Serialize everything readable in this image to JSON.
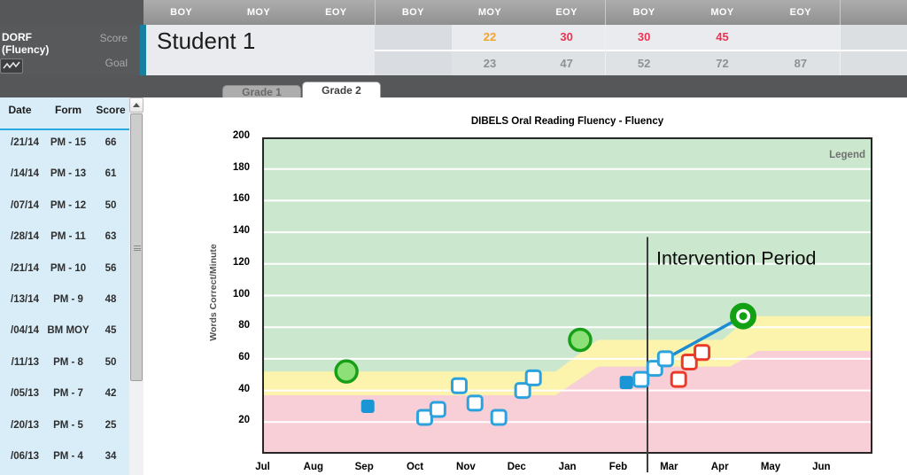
{
  "panel": {
    "measure_line1": "DORF",
    "measure_line2": "(Fluency)",
    "score_label": "Score",
    "goal_label": "Goal"
  },
  "header": {
    "student_name": "Student 1",
    "periods": [
      "BOY",
      "MOY",
      "EOY",
      "BOY",
      "MOY",
      "EOY",
      "BOY",
      "MOY",
      "EOY"
    ],
    "scores": [
      "",
      "22",
      "30",
      "30",
      "45",
      ""
    ],
    "score_colors": [
      "",
      "orange",
      "red",
      "red",
      "red",
      ""
    ],
    "goals": [
      "",
      "23",
      "47",
      "52",
      "72",
      "87"
    ],
    "score_color_hex": {
      "orange": "#f0a42c",
      "red": "#ee3352",
      "goal_gray": "#8d9196"
    }
  },
  "tabs": [
    {
      "label": "Grade 1",
      "active": false
    },
    {
      "label": "Grade 2",
      "active": true
    }
  ],
  "table": {
    "columns": [
      "Date",
      "Form",
      "Score"
    ],
    "rows": [
      {
        "date": "/21/14",
        "form": "PM - 15",
        "score": "66"
      },
      {
        "date": "/14/14",
        "form": "PM - 13",
        "score": "61"
      },
      {
        "date": "/07/14",
        "form": "PM - 12",
        "score": "50"
      },
      {
        "date": "/28/14",
        "form": "PM - 11",
        "score": "63"
      },
      {
        "date": "/21/14",
        "form": "PM - 10",
        "score": "56"
      },
      {
        "date": "/13/14",
        "form": "PM - 9",
        "score": "48"
      },
      {
        "date": "/04/14",
        "form": "BM MOY",
        "score": "45"
      },
      {
        "date": "/11/13",
        "form": "PM - 8",
        "score": "50"
      },
      {
        "date": "/05/13",
        "form": "PM - 7",
        "score": "42"
      },
      {
        "date": "/20/13",
        "form": "PM - 5",
        "score": "25"
      },
      {
        "date": "/06/13",
        "form": "PM - 4",
        "score": "34"
      }
    ]
  },
  "chart_data": {
    "type": "scatter",
    "title": "DIBELS Oral Reading Fluency - Fluency",
    "ylabel": "Words Correct/Minute",
    "legend_label": "Legend",
    "ylim": [
      0,
      200
    ],
    "yticks": [
      200,
      180,
      160,
      140,
      120,
      100,
      80,
      60,
      40,
      20
    ],
    "x_months": [
      "Jul",
      "Aug",
      "Sep",
      "Oct",
      "Nov",
      "Dec",
      "Jan",
      "Feb",
      "Mar",
      "Apr",
      "May",
      "Jun"
    ],
    "grid": true,
    "bands": {
      "colors": {
        "above_benchmark": "#cbe7cd",
        "strategic": "#fcf3ac",
        "intensive": "#f9cfd7"
      },
      "benchmark_line": [
        [
          0,
          52
        ],
        [
          5.77,
          52
        ],
        [
          6.6,
          72
        ],
        [
          9.05,
          72
        ],
        [
          9.6,
          87
        ],
        [
          12,
          87
        ]
      ],
      "cutpoint_line": [
        [
          0,
          37
        ],
        [
          5.77,
          37
        ],
        [
          6.6,
          55
        ],
        [
          9.2,
          55
        ],
        [
          9.75,
          65
        ],
        [
          12,
          65
        ]
      ]
    },
    "annotation": {
      "label": "Intervention Period",
      "x_month": 7.576,
      "line_top_value": 137,
      "line_color": "#3c3c3c"
    },
    "series": [
      {
        "name": "benchmark-goal",
        "marker": "circle-green",
        "color": "#17a017",
        "fill": "#8ce077",
        "points": [
          [
            1.65,
            52
          ],
          [
            6.25,
            72
          ]
        ]
      },
      {
        "name": "benchmark-score",
        "marker": "square-blue-filled",
        "color": "#1a96d5",
        "points": [
          [
            2.07,
            30
          ],
          [
            7.16,
            45
          ]
        ]
      },
      {
        "name": "progress-monitoring-score",
        "marker": "square-blue-open",
        "color": "#2ba2dd",
        "points": [
          [
            3.19,
            23
          ],
          [
            3.45,
            28
          ],
          [
            3.87,
            43
          ],
          [
            4.18,
            32
          ],
          [
            4.65,
            23
          ],
          [
            5.12,
            40
          ],
          [
            5.33,
            48
          ],
          [
            7.45,
            47
          ],
          [
            7.72,
            54
          ],
          [
            7.93,
            60
          ]
        ]
      },
      {
        "name": "intervention-pm-score",
        "marker": "square-red-open",
        "color": "#ea3b28",
        "points": [
          [
            8.19,
            47
          ],
          [
            8.4,
            58
          ],
          [
            8.65,
            64
          ]
        ]
      },
      {
        "name": "goal-target",
        "marker": "bullseye-green",
        "color": "#12a112",
        "points": [
          [
            9.46,
            87
          ]
        ]
      }
    ],
    "trend_line": {
      "from": [
        7.93,
        60
      ],
      "to": [
        9.46,
        87
      ],
      "color": "#1d8cd3"
    }
  }
}
